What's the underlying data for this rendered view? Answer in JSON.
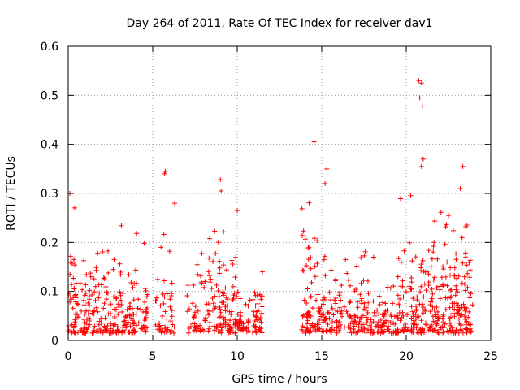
{
  "chart_data": {
    "type": "scatter",
    "title": "Day 264 of 2011, Rate Of TEC Index for receiver dav1",
    "xlabel": "GPS time / hours",
    "ylabel": "ROTI / TECUs",
    "xlim": [
      0,
      25
    ],
    "ylim": [
      0,
      0.6
    ],
    "xticks": [
      0,
      5,
      10,
      15,
      20,
      25
    ],
    "yticks": [
      0,
      0.1,
      0.2,
      0.3,
      0.4,
      0.5,
      0.6
    ],
    "xtick_labels": [
      "0",
      "5",
      "10",
      "15",
      "20",
      "25"
    ],
    "ytick_labels": [
      "0",
      "0.1",
      "0.2",
      "0.3",
      "0.4",
      "0.5",
      "0.6"
    ],
    "grid": true,
    "marker": "+",
    "color": "#ff0000",
    "data_gaps_hours": [
      [
        11.5,
        13.8
      ]
    ],
    "notable_points": [
      {
        "x": 0.1,
        "y": 0.3
      },
      {
        "x": 5.75,
        "y": 0.345
      },
      {
        "x": 5.7,
        "y": 0.34
      },
      {
        "x": 6.3,
        "y": 0.28
      },
      {
        "x": 9.0,
        "y": 0.328
      },
      {
        "x": 9.05,
        "y": 0.305
      },
      {
        "x": 10.0,
        "y": 0.265
      },
      {
        "x": 14.55,
        "y": 0.405
      },
      {
        "x": 15.3,
        "y": 0.35
      },
      {
        "x": 15.2,
        "y": 0.32
      },
      {
        "x": 20.75,
        "y": 0.53
      },
      {
        "x": 20.9,
        "y": 0.525
      },
      {
        "x": 20.8,
        "y": 0.495
      },
      {
        "x": 20.95,
        "y": 0.478
      },
      {
        "x": 21.0,
        "y": 0.37
      },
      {
        "x": 20.9,
        "y": 0.355
      },
      {
        "x": 23.35,
        "y": 0.355
      },
      {
        "x": 22.5,
        "y": 0.255
      },
      {
        "x": 23.2,
        "y": 0.31
      }
    ],
    "segments": [
      {
        "x0": 0.0,
        "x1": 0.5,
        "base": 0.09,
        "spread": 0.12,
        "peak": 0.3,
        "density": 14
      },
      {
        "x0": 0.5,
        "x1": 1.8,
        "base": 0.07,
        "spread": 0.1,
        "peak": 0.2,
        "density": 9
      },
      {
        "x0": 1.8,
        "x1": 3.0,
        "base": 0.07,
        "spread": 0.1,
        "peak": 0.22,
        "density": 9
      },
      {
        "x0": 3.0,
        "x1": 4.7,
        "base": 0.08,
        "spread": 0.1,
        "peak": 0.26,
        "density": 9
      },
      {
        "x0": 5.1,
        "x1": 6.3,
        "base": 0.08,
        "spread": 0.1,
        "peak": 0.28,
        "density": 7
      },
      {
        "x0": 7.0,
        "x1": 8.0,
        "base": 0.08,
        "spread": 0.08,
        "peak": 0.21,
        "density": 6
      },
      {
        "x0": 8.0,
        "x1": 10.0,
        "base": 0.1,
        "spread": 0.11,
        "peak": 0.25,
        "density": 10
      },
      {
        "x0": 10.0,
        "x1": 11.5,
        "base": 0.05,
        "spread": 0.08,
        "peak": 0.2,
        "density": 9
      },
      {
        "x0": 13.8,
        "x1": 15.5,
        "base": 0.1,
        "spread": 0.11,
        "peak": 0.3,
        "density": 10
      },
      {
        "x0": 15.5,
        "x1": 17.5,
        "base": 0.07,
        "spread": 0.09,
        "peak": 0.23,
        "density": 8
      },
      {
        "x0": 17.5,
        "x1": 19.5,
        "base": 0.04,
        "spread": 0.07,
        "peak": 0.2,
        "density": 8
      },
      {
        "x0": 19.5,
        "x1": 21.5,
        "base": 0.08,
        "spread": 0.1,
        "peak": 0.32,
        "density": 10
      },
      {
        "x0": 21.5,
        "x1": 23.95,
        "base": 0.1,
        "spread": 0.12,
        "peak": 0.3,
        "density": 12
      }
    ]
  }
}
